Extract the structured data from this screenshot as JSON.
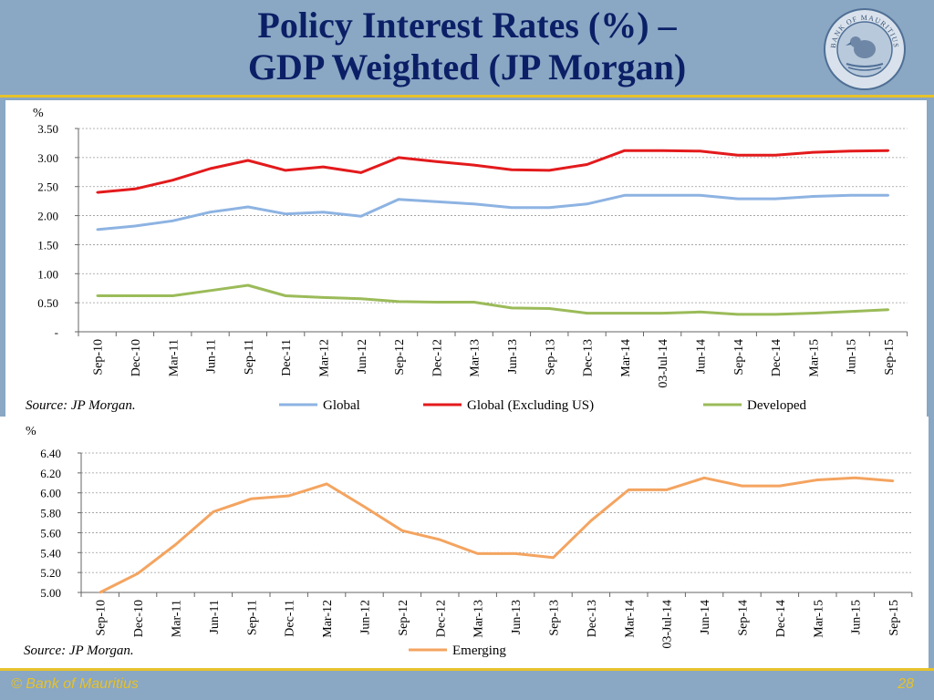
{
  "slide": {
    "title_line1": "Policy Interest Rates (%) –",
    "title_line2": "GDP Weighted (JP Morgan)",
    "seal_text": "BANK OF MAURITIUS",
    "footer_left": "© Bank of Mauritius",
    "page_number": "28"
  },
  "colors": {
    "background": "#8aa7c4",
    "title": "#0b1f66",
    "accent_line": "#e6c22a",
    "global": "#8db3e2",
    "global_ex_us": "#e31a1c",
    "developed": "#9bbb59",
    "emerging": "#f4a460"
  },
  "chart_data": [
    {
      "type": "line",
      "y_unit": "%",
      "source": "Source: JP Morgan.",
      "categories": [
        "Sep-10",
        "Dec-10",
        "Mar-11",
        "Jun-11",
        "Sep-11",
        "Dec-11",
        "Mar-12",
        "Jun-12",
        "Sep-12",
        "Dec-12",
        "Mar-13",
        "Jun-13",
        "Sep-13",
        "Dec-13",
        "Mar-14",
        "03-Jul-14",
        "Jun-14",
        "Sep-14",
        "Dec-14",
        "Mar-15",
        "Jun-15",
        "Sep-15"
      ],
      "ylim": [
        0,
        3.5
      ],
      "yticks": [
        "-",
        "0.50",
        "1.00",
        "1.50",
        "2.00",
        "2.50",
        "3.00",
        "3.50"
      ],
      "grid": true,
      "legend_position": "bottom",
      "series": [
        {
          "name": "Global",
          "color": "#8db3e2",
          "values": [
            1.76,
            1.82,
            1.91,
            2.06,
            2.15,
            2.03,
            2.06,
            1.99,
            2.28,
            2.24,
            2.2,
            2.14,
            2.14,
            2.2,
            2.35,
            2.35,
            2.35,
            2.29,
            2.29,
            2.33,
            2.35,
            2.35
          ]
        },
        {
          "name": "Global (Excluding US)",
          "color": "#e31a1c",
          "values": [
            2.4,
            2.46,
            2.61,
            2.81,
            2.95,
            2.78,
            2.84,
            2.74,
            3.0,
            2.93,
            2.87,
            2.79,
            2.78,
            2.88,
            3.12,
            3.12,
            3.11,
            3.04,
            3.04,
            3.09,
            3.11,
            3.12
          ]
        },
        {
          "name": "Developed",
          "color": "#9bbb59",
          "values": [
            0.62,
            0.62,
            0.62,
            0.71,
            0.8,
            0.62,
            0.59,
            0.57,
            0.52,
            0.51,
            0.51,
            0.41,
            0.4,
            0.32,
            0.32,
            0.32,
            0.34,
            0.3,
            0.3,
            0.32,
            0.35,
            0.38
          ]
        }
      ]
    },
    {
      "type": "line",
      "y_unit": "%",
      "source": "Source: JP Morgan.",
      "categories": [
        "Sep-10",
        "Dec-10",
        "Mar-11",
        "Jun-11",
        "Sep-11",
        "Dec-11",
        "Mar-12",
        "Jun-12",
        "Sep-12",
        "Dec-12",
        "Mar-13",
        "Jun-13",
        "Sep-13",
        "Dec-13",
        "Mar-14",
        "03-Jul-14",
        "Jun-14",
        "Sep-14",
        "Dec-14",
        "Mar-15",
        "Jun-15",
        "Sep-15"
      ],
      "ylim": [
        5.0,
        6.4
      ],
      "yticks": [
        "5.00",
        "5.20",
        "5.40",
        "5.60",
        "5.80",
        "6.00",
        "6.20",
        "6.40"
      ],
      "grid": true,
      "legend_position": "bottom",
      "series": [
        {
          "name": "Emerging",
          "color": "#f4a460",
          "values": [
            5.0,
            5.19,
            5.48,
            5.81,
            5.94,
            5.97,
            6.09,
            5.86,
            5.62,
            5.53,
            5.39,
            5.39,
            5.35,
            5.72,
            6.03,
            6.03,
            6.15,
            6.07,
            6.07,
            6.13,
            6.15,
            6.12
          ]
        }
      ]
    }
  ]
}
